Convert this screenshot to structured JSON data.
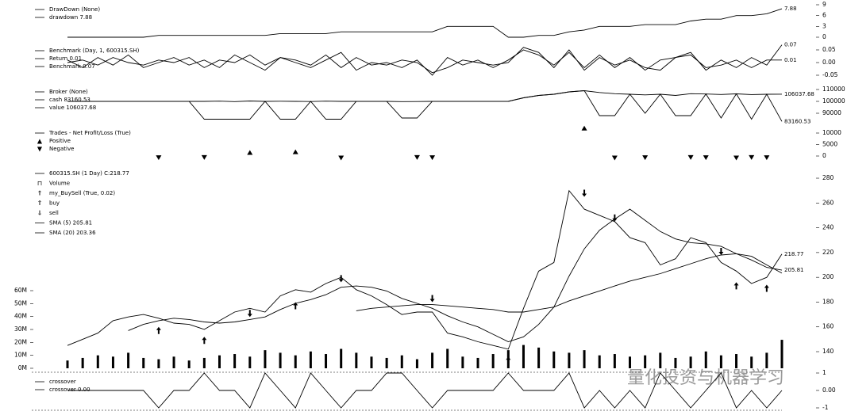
{
  "watermark": "量化投资与机器学习",
  "chart_data": [
    {
      "type": "line",
      "title": "DrawDown (None)",
      "ylim": [
        0,
        9
      ],
      "yticks": [
        0,
        3,
        6,
        9
      ],
      "series": [
        {
          "name": "drawdown 7.88",
          "color": "#000",
          "label_last": true,
          "values": [
            0,
            0,
            0,
            0,
            0,
            0,
            0.5,
            0.5,
            0.5,
            0.5,
            0.5,
            0.5,
            0.5,
            0.5,
            1,
            1,
            1,
            1,
            1.5,
            1.5,
            1.5,
            1.5,
            1.5,
            1.5,
            1.5,
            3,
            3,
            3,
            3,
            0,
            0,
            0.5,
            0.5,
            1.5,
            2,
            3,
            3,
            3,
            3.5,
            3.5,
            3.5,
            4.5,
            5,
            5,
            6,
            6,
            6.5,
            7.88
          ]
        }
      ]
    },
    {
      "type": "line",
      "title": "Benchmark (Day, 1, 600315.SH)",
      "ylim": [
        -0.05,
        0.05
      ],
      "yticks": [
        0.05,
        {
          "value": 0,
          "label": "0.00"
        },
        -0.05
      ],
      "series": [
        {
          "name": "Return 0.01",
          "color": "#000",
          "label_last": true,
          "values": [
            0,
            0.01,
            -0.01,
            0.02,
            0,
            -0.01,
            0.01,
            0,
            0.02,
            -0.02,
            0.01,
            0,
            0.03,
            -0.01,
            0.02,
            0,
            -0.02,
            0.01,
            0.04,
            -0.03,
            0,
            -0.01,
            0.01,
            0,
            -0.04,
            -0.02,
            0.01,
            0,
            -0.01,
            0,
            0.06,
            0.04,
            -0.02,
            0.05,
            -0.03,
            0.02,
            -0.01,
            0.01,
            -0.02,
            -0.03,
            0.02,
            0.03,
            -0.02,
            -0.01,
            0.01,
            -0.02,
            0.01,
            0.01
          ]
        },
        {
          "name": "Benchmark 0.07",
          "color": "#000",
          "label_last": true,
          "values": [
            0.01,
            -0.02,
            0.02,
            -0.01,
            0.03,
            -0.02,
            0,
            0.02,
            -0.01,
            0.01,
            -0.02,
            0.03,
            0,
            -0.03,
            0.02,
            0.01,
            -0.01,
            0.03,
            -0.02,
            0.02,
            -0.01,
            0,
            -0.02,
            0.01,
            -0.05,
            0.02,
            -0.01,
            0.01,
            -0.02,
            0.01,
            0.05,
            0.03,
            -0.01,
            0.04,
            -0.02,
            0.03,
            -0.02,
            0.02,
            -0.03,
            0.01,
            0.02,
            0.04,
            -0.03,
            0.01,
            -0.02,
            0.02,
            -0.01,
            0.07
          ]
        }
      ]
    },
    {
      "type": "line",
      "title": "Broker (None)",
      "ylim": [
        79000,
        114000
      ],
      "yticks": [
        90000,
        100000,
        110000
      ],
      "series": [
        {
          "name": "cash 83160.53",
          "color": "#000",
          "label_last": true,
          "values": [
            100000,
            100000,
            100000,
            100000,
            100000,
            100000,
            100000,
            100000,
            100000,
            85000,
            85000,
            85000,
            85000,
            100000,
            85000,
            85000,
            100000,
            85000,
            85000,
            100000,
            100000,
            100000,
            86000,
            86000,
            100000,
            100000,
            100000,
            100000,
            100000,
            100000,
            103000,
            105000,
            106000,
            108000,
            109000,
            88000,
            88000,
            106000,
            90000,
            106000,
            88000,
            88000,
            106200,
            86000,
            106300,
            85000,
            106000,
            83160.53
          ]
        },
        {
          "name": "value 106037.68",
          "color": "#000",
          "label_last": true,
          "values": [
            100000,
            100000,
            100000,
            100000,
            100000,
            100000,
            100000,
            100000,
            100000,
            100000,
            100200,
            99800,
            100300,
            100000,
            100100,
            100000,
            99900,
            100200,
            100000,
            100000,
            100000,
            100000,
            99800,
            99900,
            100000,
            100000,
            100000,
            100000,
            100000,
            100000,
            103000,
            105000,
            106000,
            108000,
            109000,
            107500,
            106500,
            106000,
            105500,
            106000,
            105000,
            106500,
            106200,
            105800,
            106300,
            105700,
            106000,
            106037.68
          ]
        }
      ]
    },
    {
      "type": "scatter",
      "title": "Trades - Net Profit/Loss (True)",
      "ylim": [
        -1000,
        12500
      ],
      "yticks": [
        10000,
        5000,
        0
      ],
      "series": [
        {
          "name": "Positive",
          "color": "#000",
          "marker": "triangle-up",
          "values": [
            null,
            null,
            null,
            null,
            null,
            null,
            null,
            null,
            null,
            null,
            null,
            null,
            1200,
            null,
            null,
            1500,
            null,
            null,
            null,
            null,
            null,
            null,
            null,
            null,
            null,
            null,
            null,
            null,
            null,
            null,
            null,
            null,
            null,
            null,
            11800,
            null,
            null,
            null,
            null,
            null,
            null,
            null,
            null,
            null,
            null,
            null,
            null,
            null
          ]
        },
        {
          "name": "Negative",
          "color": "#000",
          "marker": "triangle-down",
          "values": [
            null,
            null,
            null,
            null,
            null,
            null,
            -400,
            null,
            null,
            -300,
            null,
            null,
            null,
            null,
            null,
            null,
            null,
            null,
            -500,
            null,
            null,
            null,
            null,
            -300,
            -400,
            null,
            null,
            null,
            null,
            null,
            null,
            null,
            null,
            null,
            null,
            null,
            -500,
            null,
            -400,
            null,
            null,
            -300,
            -400,
            null,
            -500,
            -300,
            -400,
            null
          ]
        }
      ]
    },
    {
      "type": "line",
      "ylim": [
        128,
        288
      ],
      "yticks": [
        140,
        160,
        180,
        200,
        220,
        240,
        260,
        280
      ],
      "y2lim": [
        0,
        60000000
      ],
      "y2ticks": [
        {
          "value": 0,
          "label": "0M"
        },
        {
          "value": 10000000,
          "label": "10M"
        },
        {
          "value": 20000000,
          "label": "20M"
        },
        {
          "value": 30000000,
          "label": "30M"
        },
        {
          "value": 40000000,
          "label": "40M"
        },
        {
          "value": 50000000,
          "label": "50M"
        },
        {
          "value": 60000000,
          "label": "60M"
        }
      ],
      "group_label": "my_BuySell (True, 0.02)",
      "series": [
        {
          "name": "600315.SH (1 Day) C:218.77",
          "color": "#000",
          "label_last": true,
          "values": [
            145,
            150,
            155,
            165,
            168,
            170,
            167,
            163,
            162,
            158,
            165,
            172,
            175,
            172,
            185,
            190,
            188,
            195,
            200,
            190,
            185,
            178,
            170,
            172,
            172,
            155,
            152,
            148,
            145,
            142,
            175,
            205,
            212,
            270,
            255,
            250,
            245,
            232,
            228,
            210,
            215,
            232,
            228,
            212,
            205,
            195,
            200,
            218.77
          ]
        },
        {
          "name": "Volume",
          "color": "#000",
          "type": "bar",
          "axis": "y2",
          "values": [
            6000000,
            8000000,
            10000000,
            9000000,
            12000000,
            8000000,
            7000000,
            9000000,
            6000000,
            8000000,
            10000000,
            11000000,
            9000000,
            14000000,
            12000000,
            10000000,
            13000000,
            11000000,
            15000000,
            12000000,
            9000000,
            8000000,
            10000000,
            7000000,
            12000000,
            15000000,
            9000000,
            8000000,
            11000000,
            14000000,
            18000000,
            16000000,
            13000000,
            12000000,
            14000000,
            10000000,
            11000000,
            9000000,
            10000000,
            12000000,
            8000000,
            9000000,
            13000000,
            10000000,
            11000000,
            9000000,
            12000000,
            22000000
          ]
        },
        {
          "name": "buy",
          "color": "#000",
          "marker": "arrow-up",
          "values": [
            null,
            null,
            null,
            null,
            null,
            null,
            160,
            null,
            null,
            152,
            null,
            null,
            null,
            null,
            null,
            180,
            null,
            null,
            null,
            null,
            null,
            null,
            null,
            null,
            null,
            null,
            null,
            null,
            null,
            136,
            null,
            null,
            null,
            null,
            null,
            null,
            null,
            null,
            null,
            null,
            null,
            null,
            null,
            null,
            196,
            null,
            194,
            null
          ]
        },
        {
          "name": "sell",
          "color": "#000",
          "marker": "arrow-down",
          "values": [
            null,
            null,
            null,
            null,
            null,
            null,
            null,
            null,
            null,
            null,
            null,
            null,
            168,
            null,
            null,
            null,
            null,
            null,
            196,
            null,
            null,
            null,
            null,
            null,
            180,
            null,
            null,
            null,
            null,
            null,
            null,
            null,
            null,
            null,
            265,
            null,
            245,
            null,
            null,
            null,
            null,
            null,
            null,
            218,
            null,
            null,
            null,
            null
          ]
        },
        {
          "name": "SMA (5) 205.81",
          "color": "#000",
          "label_last": true,
          "values": [
            null,
            null,
            null,
            null,
            157,
            162,
            165,
            167,
            166,
            164,
            163,
            164,
            166,
            168,
            174,
            179,
            182,
            186,
            192,
            193,
            192,
            189,
            183,
            179,
            175,
            169,
            164,
            160,
            154,
            148,
            152,
            162,
            176,
            201,
            223,
            238,
            247,
            255,
            246,
            237,
            231,
            228,
            227,
            225,
            219,
            214,
            208,
            205.81
          ]
        },
        {
          "name": "SMA (20) 203.36",
          "color": "#000",
          "values": [
            null,
            null,
            null,
            null,
            null,
            null,
            null,
            null,
            null,
            null,
            null,
            null,
            null,
            null,
            null,
            null,
            null,
            null,
            null,
            173,
            175,
            176,
            177,
            178,
            178,
            177,
            176,
            175,
            174,
            172,
            172,
            174,
            176,
            181,
            185,
            189,
            193,
            197,
            200,
            203,
            207,
            211,
            215,
            218,
            219,
            217,
            210,
            203.36
          ]
        }
      ]
    },
    {
      "type": "line",
      "title": "crossover",
      "ylim": [
        -1,
        1
      ],
      "yticks": [
        1,
        {
          "value": 0,
          "label": "0.00"
        },
        -1
      ],
      "series": [
        {
          "name": "crossover 0.00",
          "color": "#000",
          "values": [
            0,
            0,
            0,
            0,
            0,
            0,
            -1,
            0,
            0,
            1,
            0,
            0,
            -1,
            1,
            0,
            -1,
            1,
            0,
            -1,
            0,
            0,
            1,
            1,
            0,
            -1,
            0,
            0,
            0,
            0,
            1,
            0,
            0,
            0,
            1,
            -1,
            0,
            -1,
            0,
            -1,
            1,
            0,
            -1,
            0,
            1,
            -1,
            0,
            -1,
            0
          ]
        }
      ]
    }
  ]
}
